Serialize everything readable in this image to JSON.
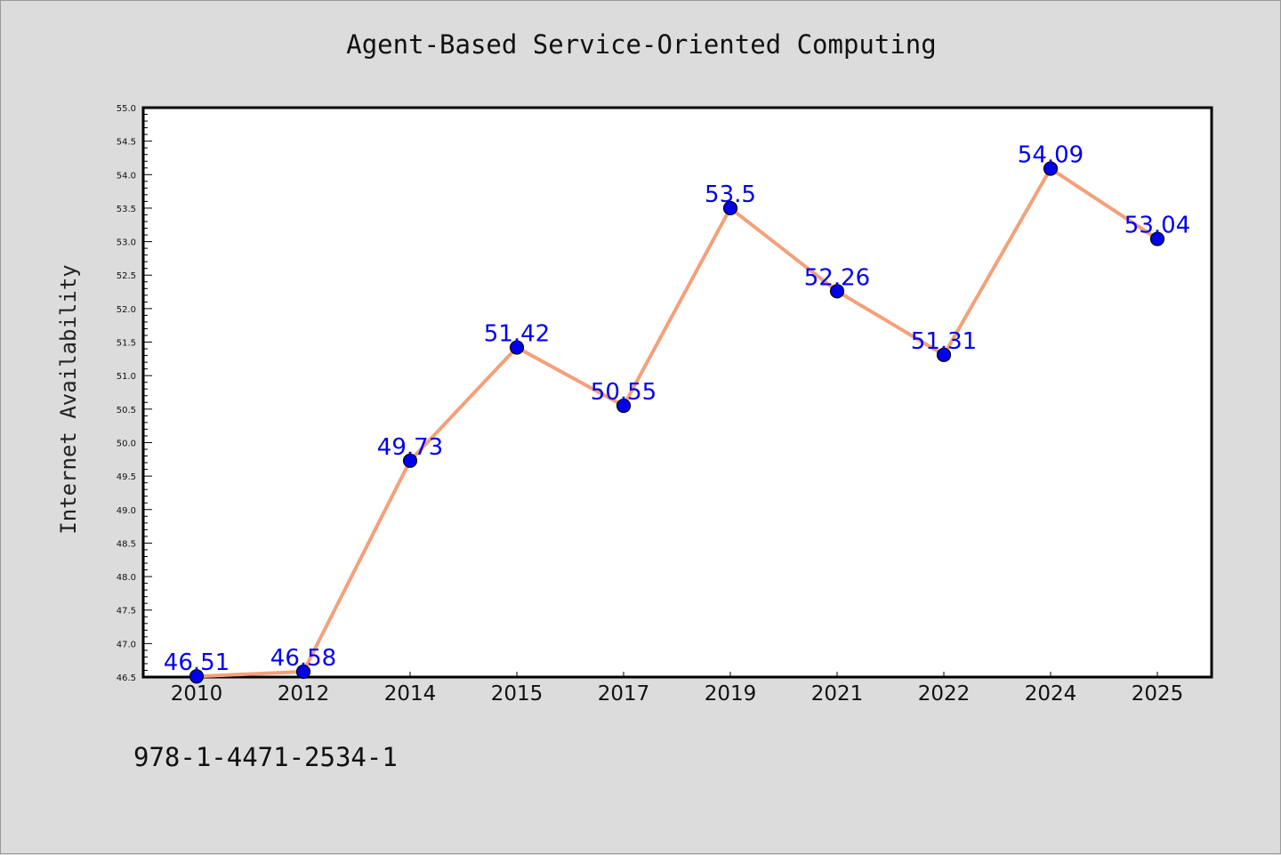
{
  "chart_data": {
    "type": "line",
    "title": "Agent-Based Service-Oriented Computing",
    "xlabel": "",
    "ylabel": "Internet Availability",
    "categories": [
      "2010",
      "2012",
      "2014",
      "2015",
      "2017",
      "2019",
      "2021",
      "2022",
      "2024",
      "2025"
    ],
    "series": [
      {
        "values": [
          46.51,
          46.58,
          49.73,
          51.42,
          50.55,
          53.5,
          52.26,
          51.31,
          54.09,
          53.04
        ],
        "data_labels": [
          "46.51",
          "46.58",
          "49.73",
          "51.42",
          "50.55",
          "53.5",
          "52.26",
          "51.31",
          "54.09",
          "53.04"
        ],
        "line_color": "#f4a07a",
        "marker_color": "#0000ee"
      }
    ],
    "ylim": [
      46.5,
      55.0
    ],
    "yticks": [
      "46.5",
      "47.0",
      "47.5",
      "48.0",
      "48.5",
      "49.0",
      "49.5",
      "50.0",
      "50.5",
      "51.0",
      "51.5",
      "52.0",
      "52.5",
      "53.0",
      "53.5",
      "54.0",
      "54.5",
      "55.0"
    ],
    "grid": false,
    "legend": "none",
    "label_color": "#0000ee"
  },
  "footer": {
    "text": "978-1-4471-2534-1"
  }
}
